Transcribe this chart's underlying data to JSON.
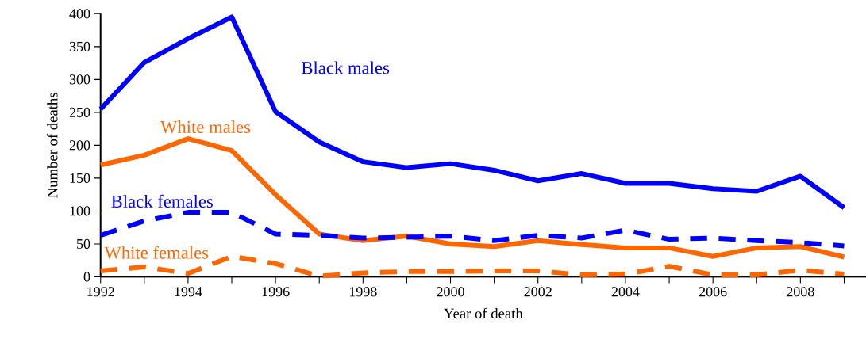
{
  "chart_data": {
    "type": "line",
    "xlabel": "Year of death",
    "ylabel": "Number of deaths",
    "x": [
      1992,
      1993,
      1994,
      1995,
      1996,
      1997,
      1998,
      1999,
      2000,
      2001,
      2002,
      2003,
      2004,
      2005,
      2006,
      2007,
      2008,
      2009
    ],
    "xlim": [
      1992,
      2009.5
    ],
    "xticks": [
      1992,
      {
        "value": 1993,
        "label": null
      },
      1994,
      {
        "value": 1995,
        "label": null
      },
      1996,
      {
        "value": 1997,
        "label": null
      },
      1998,
      {
        "value": 1999,
        "label": null
      },
      2000,
      {
        "value": 2001,
        "label": null
      },
      2002,
      {
        "value": 2003,
        "label": null
      },
      2004,
      {
        "value": 2005,
        "label": null
      },
      2006,
      {
        "value": 2007,
        "label": null
      },
      2008,
      {
        "value": 2009,
        "label": null
      }
    ],
    "ylim": [
      0,
      400
    ],
    "yticks": [
      0,
      50,
      100,
      150,
      200,
      250,
      300,
      350,
      400
    ],
    "grid": false,
    "legend": false,
    "marker": "none",
    "series": [
      {
        "name": "Black males",
        "color": "#0000ff",
        "line_style": "solid",
        "values": [
          255,
          326,
          362,
          395,
          251,
          205,
          175,
          166,
          172,
          162,
          146,
          157,
          142,
          142,
          134,
          130,
          153,
          105
        ]
      },
      {
        "name": "White males",
        "color": "#ff6600",
        "line_style": "solid",
        "values": [
          170,
          185,
          210,
          192,
          125,
          65,
          55,
          62,
          50,
          46,
          55,
          49,
          44,
          44,
          31,
          44,
          46,
          30
        ]
      },
      {
        "name": "Black females",
        "color": "#0000ff",
        "line_style": "dashed",
        "values": [
          63,
          85,
          98,
          98,
          65,
          63,
          59,
          60,
          62,
          55,
          63,
          59,
          71,
          57,
          59,
          55,
          52,
          47
        ]
      },
      {
        "name": "White females",
        "color": "#ff6600",
        "line_style": "dashed",
        "values": [
          9,
          15,
          5,
          31,
          20,
          1,
          6,
          8,
          8,
          9,
          9,
          3,
          4,
          16,
          3,
          3,
          10,
          4
        ]
      }
    ]
  }
}
